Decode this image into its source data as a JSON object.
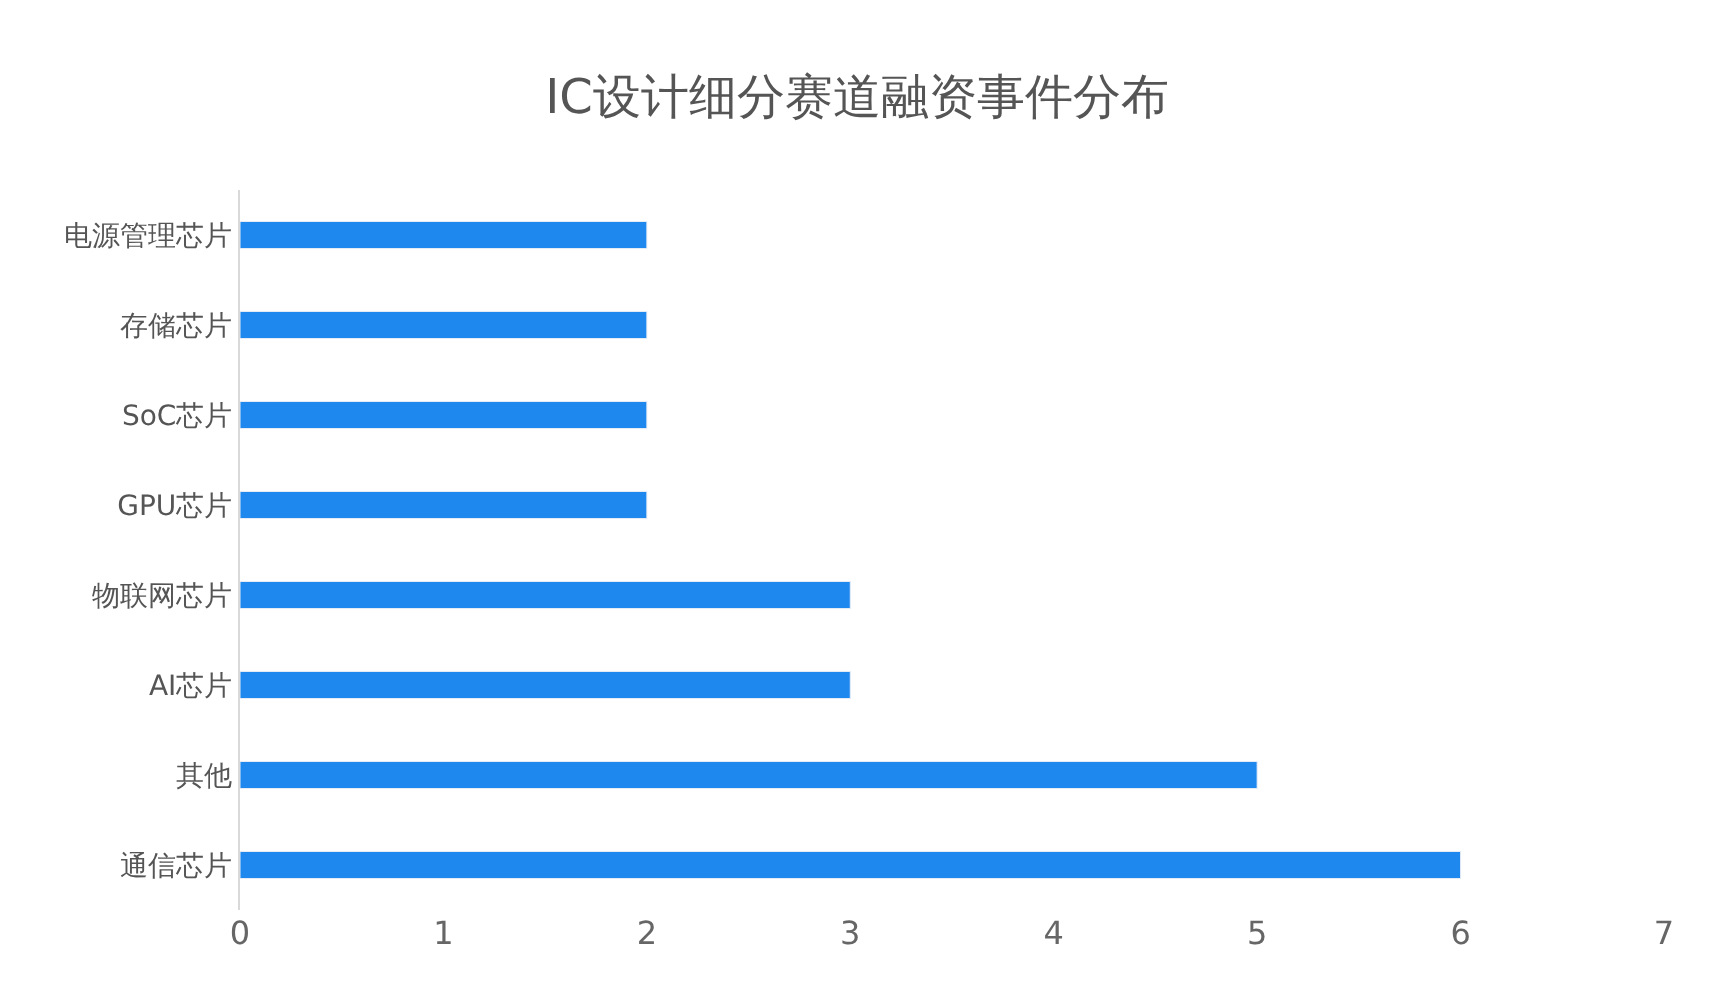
{
  "chart_data": {
    "type": "bar",
    "orientation": "horizontal",
    "title": "IC设计细分赛道融资事件分布",
    "categories": [
      "电源管理芯片",
      "存储芯片",
      "SoC芯片",
      "GPU芯片",
      "物联网芯片",
      "AI芯片",
      "其他",
      "通信芯片"
    ],
    "values": [
      2,
      2,
      2,
      2,
      3,
      3,
      5,
      6
    ],
    "color": "#1f88ee",
    "xlim": [
      0,
      7
    ],
    "xticks": [
      0,
      1,
      2,
      3,
      4,
      5,
      6,
      7
    ]
  }
}
